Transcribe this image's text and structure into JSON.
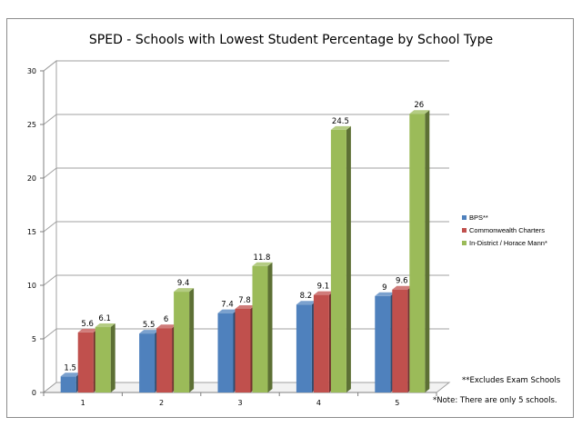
{
  "chart_data": {
    "type": "bar",
    "title": "SPED - Schools with Lowest Student Percentage by School Type",
    "categories": [
      "1",
      "2",
      "3",
      "4",
      "5"
    ],
    "series": [
      {
        "name": "BPS**",
        "values": [
          1.5,
          5.5,
          7.4,
          8.2,
          9
        ],
        "labels": [
          "1.5",
          "5.5",
          "7.4",
          "8.2",
          "9"
        ]
      },
      {
        "name": "Commonwealth Charters",
        "values": [
          5.6,
          6,
          7.8,
          9.1,
          9.6
        ],
        "labels": [
          "5.6",
          "6",
          "7.8",
          "9.1",
          "9.6"
        ]
      },
      {
        "name": "In-District / Horace Mann*",
        "values": [
          6.1,
          9.4,
          11.8,
          24.5,
          26
        ],
        "labels": [
          "6.1",
          "9.4",
          "11.8",
          "24.5",
          "26"
        ]
      }
    ],
    "yticks": [
      "0",
      "5",
      "10",
      "15",
      "20",
      "25",
      "30"
    ],
    "ylim": [
      0,
      30
    ],
    "xlabel": "",
    "ylabel": "",
    "grid": true,
    "legend_position": "right"
  },
  "colors": {
    "BPS**": "#4f81bd",
    "Commonwealth Charters": "#c0504d",
    "In-District / Horace Mann*": "#9bbb59"
  },
  "notes": {
    "exam_schools": "**Excludes Exam Schools",
    "five_schools": "*Note: There are only 5 schools."
  }
}
